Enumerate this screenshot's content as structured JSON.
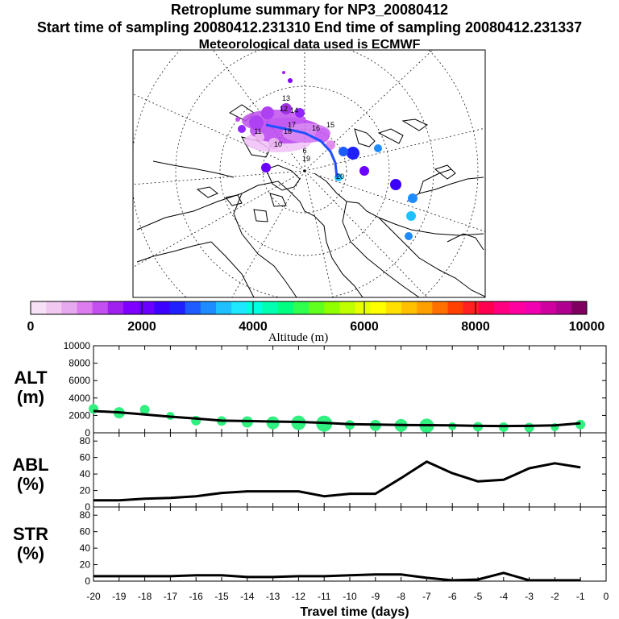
{
  "header": {
    "title": "Retroplume summary for NP3_20080412",
    "sampling_line": "Start time of sampling 20080412.231310     End time of sampling 20080412.231337",
    "met_line": "Meteorological data used is ECMWF"
  },
  "colorbar": {
    "label": "Altitude (m)",
    "ticks": [
      "0",
      "2000",
      "4000",
      "6000",
      "8000",
      "10000"
    ],
    "colors": [
      "#f7e1f7",
      "#f0c8f0",
      "#e6a8ee",
      "#dd7cee",
      "#c44ff0",
      "#a020f0",
      "#8000ff",
      "#6a00ff",
      "#3c00ff",
      "#2020ff",
      "#1e5cff",
      "#1e8cff",
      "#1ec0ff",
      "#1ee8ff",
      "#00ffe0",
      "#00ffb0",
      "#00ff80",
      "#30ff50",
      "#60ff20",
      "#90ff00",
      "#c0ff00",
      "#e8ff00",
      "#ffff00",
      "#ffe000",
      "#ffc000",
      "#ffa000",
      "#ff7000",
      "#ff4000",
      "#ff2020",
      "#ff0050",
      "#ff0080",
      "#ff00a0",
      "#f000b0",
      "#d000a0",
      "#b00090",
      "#800060"
    ]
  },
  "map": {
    "day_labels": [
      "20",
      "19",
      "18",
      "17",
      "16",
      "15",
      "14",
      "13",
      "12",
      "11",
      "10",
      "6"
    ],
    "plume_color": "#d05cff",
    "track_color": "#2050ff"
  },
  "chart_data": [
    {
      "type": "line",
      "name": "alt-panel",
      "ylabel": "ALT (m)",
      "ylim": [
        0,
        10000
      ],
      "yticks": [
        0,
        2000,
        4000,
        6000,
        8000,
        10000
      ],
      "x": [
        -20,
        -19,
        -18,
        -17,
        -16,
        -15,
        -14,
        -13,
        -12,
        -11,
        -10,
        -9,
        -8,
        -7,
        -6,
        -5,
        -4,
        -3,
        -2,
        -1
      ],
      "values": [
        2500,
        2350,
        2100,
        1850,
        1650,
        1400,
        1350,
        1300,
        1250,
        1150,
        1000,
        950,
        900,
        880,
        850,
        800,
        780,
        800,
        850,
        1100
      ],
      "markers": [
        {
          "x": -20,
          "y": 2750,
          "r": 6
        },
        {
          "x": -19,
          "y": 2300,
          "r": 7
        },
        {
          "x": -18,
          "y": 2650,
          "r": 6
        },
        {
          "x": -17,
          "y": 1950,
          "r": 5
        },
        {
          "x": -16,
          "y": 1400,
          "r": 6
        },
        {
          "x": -15,
          "y": 1350,
          "r": 6
        },
        {
          "x": -14,
          "y": 1250,
          "r": 7
        },
        {
          "x": -13,
          "y": 1150,
          "r": 8
        },
        {
          "x": -12,
          "y": 1150,
          "r": 9
        },
        {
          "x": -11,
          "y": 1050,
          "r": 10
        },
        {
          "x": -10,
          "y": 900,
          "r": 6
        },
        {
          "x": -9,
          "y": 850,
          "r": 7
        },
        {
          "x": -8,
          "y": 850,
          "r": 8
        },
        {
          "x": -7,
          "y": 800,
          "r": 9
        },
        {
          "x": -6,
          "y": 750,
          "r": 5
        },
        {
          "x": -5,
          "y": 700,
          "r": 6
        },
        {
          "x": -4,
          "y": 650,
          "r": 6
        },
        {
          "x": -3,
          "y": 600,
          "r": 6
        },
        {
          "x": -2,
          "y": 650,
          "r": 5
        },
        {
          "x": -1,
          "y": 950,
          "r": 6
        }
      ],
      "marker_color": "#30f080"
    },
    {
      "type": "line",
      "name": "abl-panel",
      "ylabel": "ABL (%)",
      "ylim": [
        0,
        90
      ],
      "yticks": [
        0,
        20,
        40,
        60,
        80
      ],
      "x": [
        -20,
        -19,
        -18,
        -17,
        -16,
        -15,
        -14,
        -13,
        -12,
        -11,
        -10,
        -9,
        -8,
        -7,
        -6,
        -5,
        -4,
        -3,
        -2,
        -1
      ],
      "values": [
        8,
        8,
        10,
        11,
        13,
        17,
        19,
        19,
        19,
        13,
        16,
        16,
        35,
        55,
        41,
        31,
        33,
        47,
        53,
        48
      ]
    },
    {
      "type": "line",
      "name": "str-panel",
      "ylabel": "STR (%)",
      "ylim": [
        0,
        90
      ],
      "yticks": [
        0,
        20,
        40,
        60,
        80
      ],
      "x": [
        -20,
        -19,
        -18,
        -17,
        -16,
        -15,
        -14,
        -13,
        -12,
        -11,
        -10,
        -9,
        -8,
        -7,
        -6,
        -5,
        -4,
        -3,
        -2,
        -1
      ],
      "values": [
        6,
        6,
        6,
        6,
        7,
        7,
        5,
        5,
        6,
        6,
        7,
        8,
        8,
        4,
        1,
        2,
        10,
        1,
        1,
        1
      ]
    }
  ],
  "xaxis": {
    "label": "Travel time (days)",
    "ticks": [
      "-20",
      "-19",
      "-18",
      "-17",
      "-16",
      "-15",
      "-14",
      "-13",
      "-12",
      "-11",
      "-10",
      "-9",
      "-8",
      "-7",
      "-6",
      "-5",
      "-4",
      "-3",
      "-2",
      "-1",
      "0"
    ]
  },
  "panel_labels": {
    "alt_top": "ALT",
    "alt_bottom": "(m)",
    "abl_top": "ABL",
    "abl_bottom": "(%)",
    "str_top": "STR",
    "str_bottom": "(%)"
  }
}
